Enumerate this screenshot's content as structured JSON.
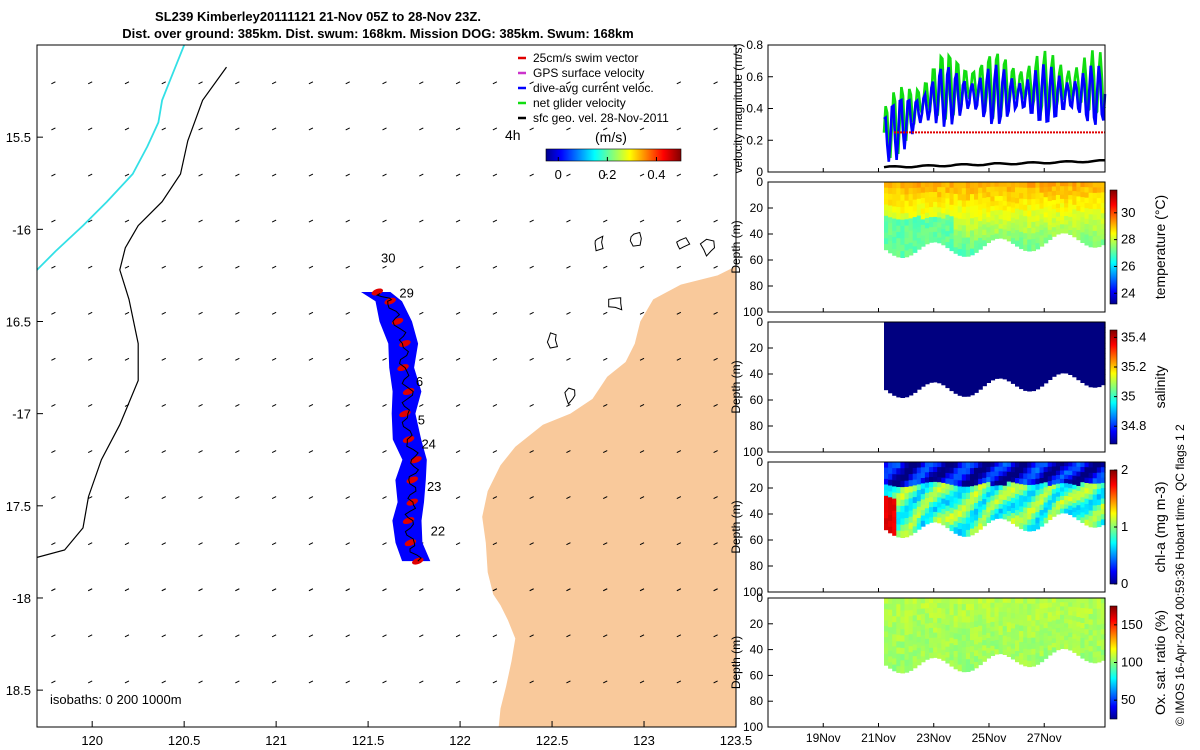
{
  "title": {
    "line1": "SL239 Kimberley20111121 21-Nov 05Z to 28-Nov 23Z.",
    "line2": "Dist. over ground: 385km. Dist. swum: 168km. Mission DOG: 385km. Swum: 168km"
  },
  "credit": "© IMOS 16-Apr-2024 00:59:36 Hobart time. QC flags 1  2",
  "colors": {
    "land": "#f9c99b",
    "track": "#0000ff",
    "river": "#33e0e6",
    "swim": "#e00000",
    "gps": "#cc33cc",
    "net": "#11dd11",
    "geo": "#000000"
  },
  "chart_data": [
    {
      "type": "map",
      "name": "track-map",
      "xlim": [
        119.7,
        123.5
      ],
      "ylim": [
        -18.7,
        -15.0
      ],
      "xticks": [
        120,
        120.5,
        121,
        121.5,
        122,
        122.5,
        123,
        123.5
      ],
      "yticks": [
        -15.5,
        -16,
        -16.5,
        -17,
        -17.5,
        -18,
        -18.5
      ],
      "ytick_labels": [
        "15.5",
        "-16",
        "16.5",
        "-17",
        "17.5",
        "-18",
        "18.5"
      ],
      "legend": [
        {
          "label": "25cm/s swim vector",
          "color": "#e00000"
        },
        {
          "label": "GPS surface velocity",
          "color": "#cc33cc"
        },
        {
          "label": "dive-avg current veloc.",
          "color": "#0000ff"
        },
        {
          "label": "net glider velocity",
          "color": "#11dd11"
        },
        {
          "label": "sfc geo. vel. 28-Nov-2011",
          "color": "#000000"
        }
      ],
      "colorbar": {
        "label": "(m/s)",
        "ticks": [
          0,
          0.2,
          0.4
        ],
        "range": [
          -0.05,
          0.5
        ]
      },
      "time_marker": "4h",
      "isobaths_label": "isobaths: 0   200  1000m",
      "day_labels": [
        {
          "text": "30",
          "lon": 121.57,
          "lat": -16.18
        },
        {
          "text": "29",
          "lon": 121.67,
          "lat": -16.37
        },
        {
          "text": "6",
          "lon": 121.76,
          "lat": -16.85
        },
        {
          "text": "5",
          "lon": 121.77,
          "lat": -17.06
        },
        {
          "text": "24",
          "lon": 121.79,
          "lat": -17.19
        },
        {
          "text": "23",
          "lon": 121.82,
          "lat": -17.42
        },
        {
          "text": "22",
          "lon": 121.84,
          "lat": -17.66
        }
      ],
      "track": [
        [
          121.77,
          -17.8
        ],
        [
          121.73,
          -17.7
        ],
        [
          121.72,
          -17.58
        ],
        [
          121.74,
          -17.48
        ],
        [
          121.74,
          -17.36
        ],
        [
          121.76,
          -17.25
        ],
        [
          121.72,
          -17.14
        ],
        [
          121.7,
          -17.0
        ],
        [
          121.72,
          -16.88
        ],
        [
          121.69,
          -16.75
        ],
        [
          121.7,
          -16.62
        ],
        [
          121.66,
          -16.5
        ],
        [
          121.62,
          -16.39
        ],
        [
          121.55,
          -16.34
        ]
      ]
    },
    {
      "type": "line",
      "name": "velocity-magnitude",
      "ylabel": "velocity magnitude (m/s)",
      "ylim": [
        0,
        0.8
      ],
      "yticks": [
        0,
        0.2,
        0.4,
        0.6,
        0.8
      ],
      "xlim_days": [
        17.0,
        29.2
      ],
      "series": [
        {
          "name": "net glider velocity",
          "color": "#11dd11",
          "base": 0.55,
          "amp": 0.22
        },
        {
          "name": "dive-avg current veloc.",
          "color": "#0000ff",
          "base": 0.48,
          "amp": 0.2
        },
        {
          "name": "swim",
          "color": "#e00000",
          "value": 0.25
        },
        {
          "name": "sfc geo",
          "color": "#000000",
          "start": 0.03,
          "end": 0.07
        }
      ]
    },
    {
      "type": "heatmap",
      "name": "temperature-section",
      "ylabel": "Depth (m)",
      "cblabel": "temperature (°C)",
      "ylim": [
        0,
        100
      ],
      "yticks": [
        0,
        20,
        40,
        60,
        80,
        100
      ],
      "cbticks": [
        24,
        26,
        28,
        30
      ],
      "cbrange": [
        23.2,
        31.7
      ],
      "surface_value": 29.2,
      "deep_value": 26.8
    },
    {
      "type": "heatmap",
      "name": "salinity-section",
      "ylabel": "Depth (m)",
      "cblabel": "salinity",
      "ylim": [
        0,
        100
      ],
      "yticks": [
        0,
        20,
        40,
        60,
        80,
        100
      ],
      "cbticks": [
        34.8,
        35,
        35.2,
        35.4
      ],
      "cbrange": [
        34.68,
        35.45
      ],
      "surface_value": 34.6,
      "deep_value": 34.6
    },
    {
      "type": "heatmap",
      "name": "chla-section",
      "ylabel": "Depth (m)",
      "cblabel": "chl-a (mg m-3)",
      "ylim": [
        0,
        100
      ],
      "yticks": [
        0,
        20,
        40,
        60,
        80,
        100
      ],
      "cbticks": [
        0,
        1,
        2
      ],
      "cbrange": [
        0,
        2
      ],
      "surface_value": 0.25,
      "deep_value": 1.15
    },
    {
      "type": "heatmap",
      "name": "oxygen-section",
      "ylabel": "Depth (m)",
      "cblabel": "Ox. sat. ratio (%)",
      "ylim": [
        0,
        100
      ],
      "yticks": [
        0,
        20,
        40,
        60,
        80,
        100
      ],
      "cbticks": [
        50,
        100,
        150
      ],
      "cbrange": [
        25,
        175
      ],
      "surface_value": 108,
      "deep_value": 103
    }
  ],
  "time_axis": {
    "labels": [
      "19Nov",
      "21Nov",
      "23Nov",
      "25Nov",
      "27Nov"
    ],
    "days": [
      19,
      21,
      23,
      25,
      27
    ],
    "data_start_day": 21.2,
    "data_end_day": 29.0
  }
}
